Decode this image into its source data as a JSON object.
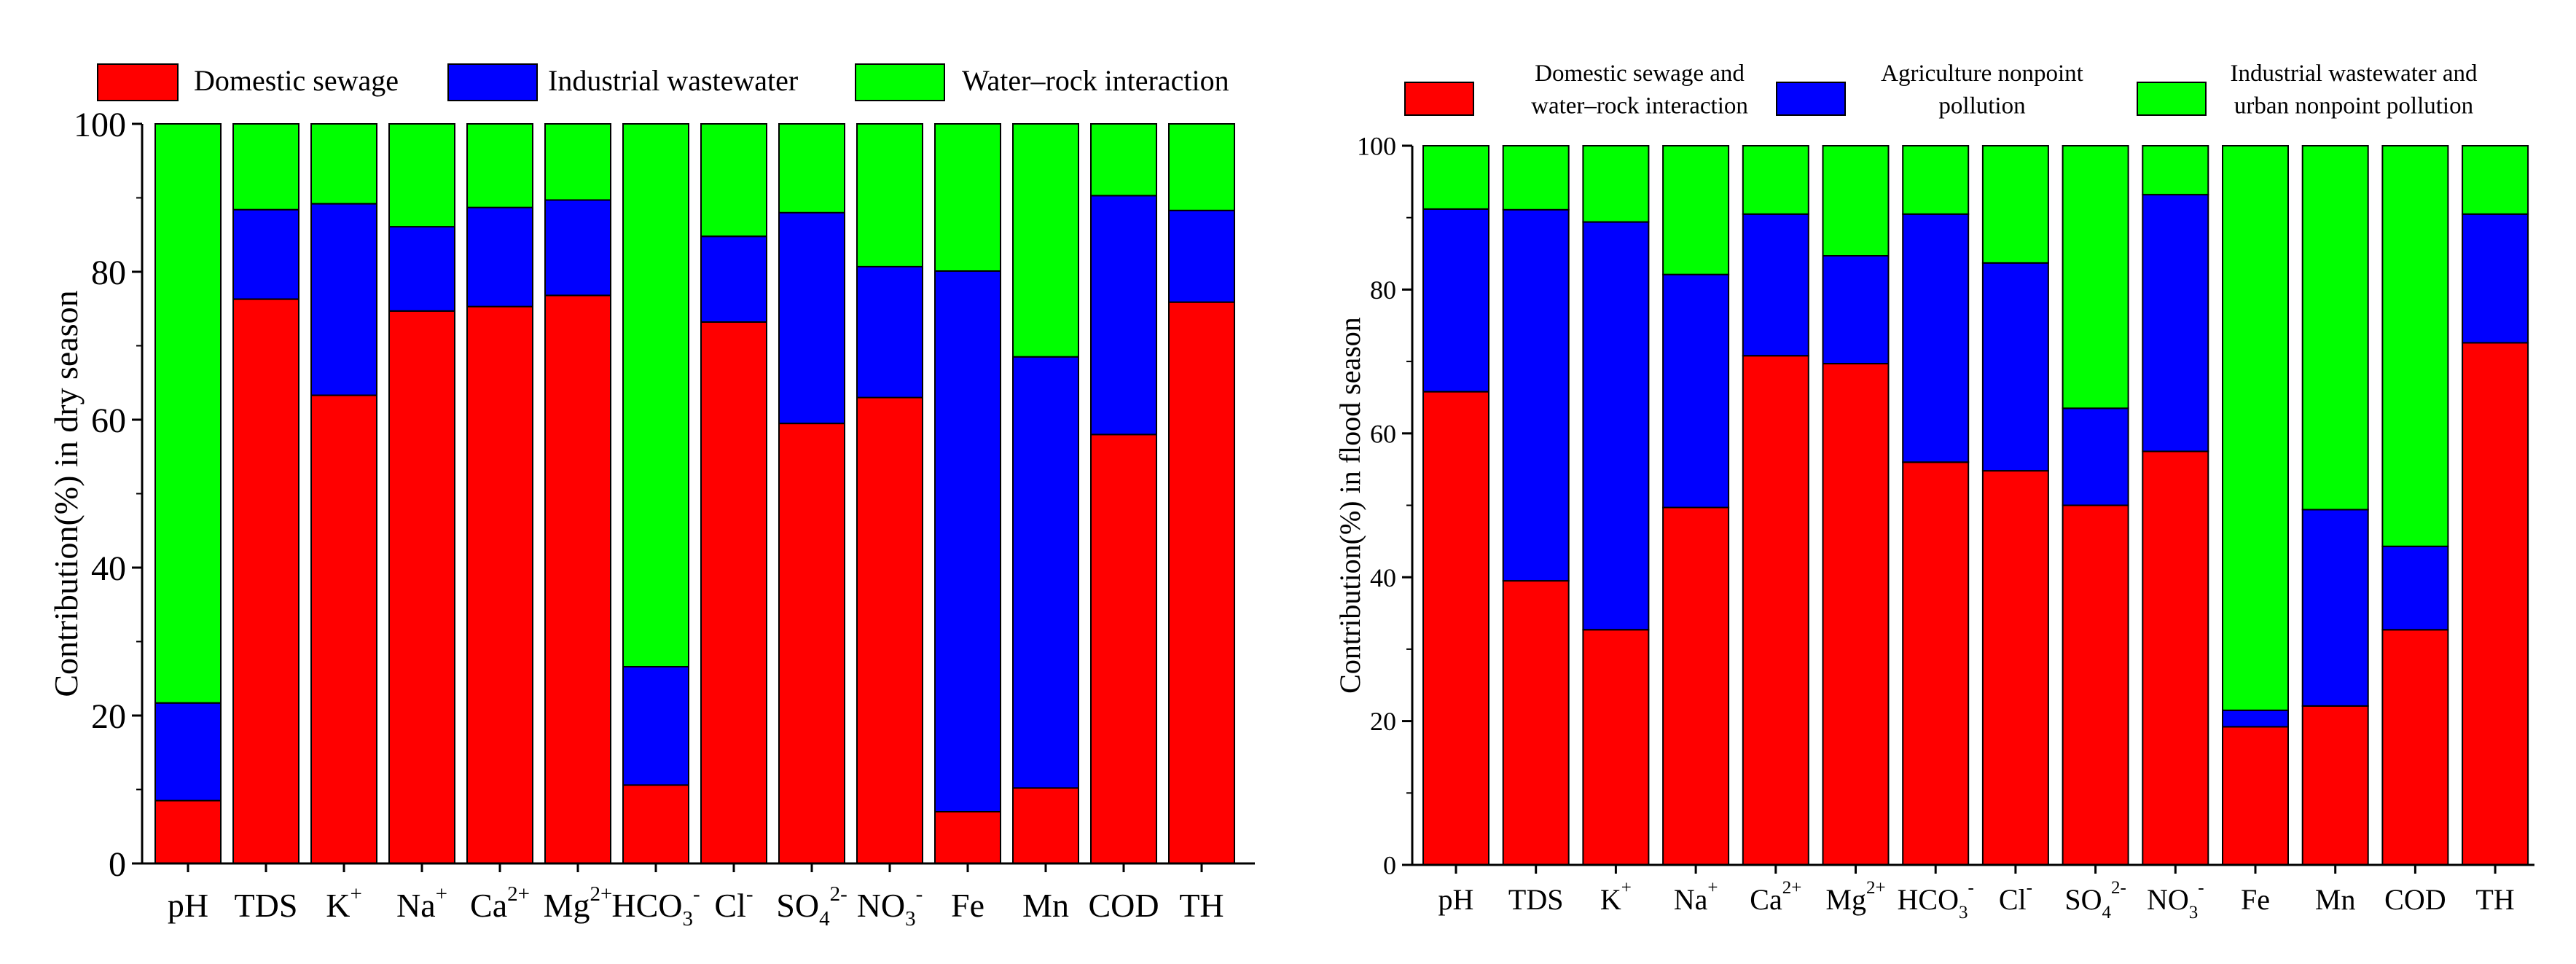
{
  "chart_data": [
    {
      "type": "bar",
      "stacked": true,
      "ylabel": "Contribution(%) in dry season",
      "ylim": [
        0,
        100
      ],
      "yticks": [
        "0",
        "20",
        "40",
        "60",
        "80",
        "100"
      ],
      "legend_position": "top",
      "categories": [
        {
          "base": "pH"
        },
        {
          "base": "TDS"
        },
        {
          "base": "K",
          "sup": "+"
        },
        {
          "base": "Na",
          "sup": "+"
        },
        {
          "base": "Ca",
          "sup": "2+"
        },
        {
          "base": "Mg",
          "sup": "2+"
        },
        {
          "base": "HCO",
          "sub": "3",
          "sup": "-"
        },
        {
          "base": "Cl",
          "sup": "-"
        },
        {
          "base": "SO",
          "sub": "4",
          "sup": "2-"
        },
        {
          "base": "NO",
          "sub": "3",
          "sup": "-"
        },
        {
          "base": "Fe"
        },
        {
          "base": "Mn"
        },
        {
          "base": "COD"
        },
        {
          "base": "TH"
        }
      ],
      "series": [
        {
          "name": "Domestic sewage",
          "color": "#ff0000",
          "values": [
            8.5,
            76.3,
            63.3,
            74.7,
            75.3,
            76.8,
            10.6,
            73.2,
            59.5,
            63.0,
            7.0,
            10.2,
            58.0,
            75.9
          ]
        },
        {
          "name": "Industrial wastewater",
          "color": "#0000ff",
          "values": [
            13.2,
            12.1,
            25.9,
            11.4,
            13.4,
            12.9,
            16.0,
            11.6,
            28.5,
            17.7,
            73.1,
            58.3,
            32.3,
            12.4
          ]
        },
        {
          "name": "Water–rock interaction",
          "color": "#00ff00",
          "values": [
            78.3,
            11.6,
            10.8,
            13.9,
            11.3,
            10.3,
            73.4,
            15.2,
            12.0,
            19.3,
            19.9,
            31.5,
            9.7,
            11.7
          ]
        }
      ]
    },
    {
      "type": "bar",
      "stacked": true,
      "ylabel": "Contribution(%) in flood season",
      "ylim": [
        0,
        100
      ],
      "yticks": [
        "0",
        "20",
        "40",
        "60",
        "80",
        "100"
      ],
      "legend_position": "top",
      "categories": [
        {
          "base": "pH"
        },
        {
          "base": "TDS"
        },
        {
          "base": "K",
          "sup": "+"
        },
        {
          "base": "Na",
          "sup": "+"
        },
        {
          "base": "Ca",
          "sup": "2+"
        },
        {
          "base": "Mg",
          "sup": "2+"
        },
        {
          "base": "HCO",
          "sub": "3",
          "sup": "-"
        },
        {
          "base": "Cl",
          "sup": "-"
        },
        {
          "base": "SO",
          "sub": "4",
          "sup": "2-"
        },
        {
          "base": "NO",
          "sub": "3",
          "sup": "-"
        },
        {
          "base": "Fe"
        },
        {
          "base": "Mn"
        },
        {
          "base": "COD"
        },
        {
          "base": "TH"
        }
      ],
      "series": [
        {
          "name": "Domestic sewage and water–rock interaction",
          "legend_lines": [
            "Domestic sewage and",
            "water–rock interaction"
          ],
          "color": "#ff0000",
          "values": [
            65.8,
            39.5,
            32.7,
            49.7,
            70.8,
            69.7,
            56.0,
            54.8,
            50.0,
            57.5,
            19.2,
            22.1,
            32.7,
            72.6
          ]
        },
        {
          "name": "Agriculture nonpoint pollution",
          "legend_lines": [
            "Agriculture nonpoint",
            "pollution"
          ],
          "color": "#0000ff",
          "values": [
            25.4,
            51.6,
            56.7,
            32.4,
            19.7,
            15.0,
            34.5,
            28.9,
            13.5,
            35.7,
            2.3,
            27.3,
            11.6,
            17.9
          ]
        },
        {
          "name": "Industrial wastewater and urban nonpoint pollution",
          "legend_lines": [
            "Industrial wastewater and",
            "urban nonpoint pollution"
          ],
          "color": "#00ff00",
          "values": [
            8.8,
            8.9,
            10.6,
            17.9,
            9.5,
            15.3,
            9.5,
            16.3,
            36.5,
            6.8,
            78.5,
            50.6,
            55.7,
            9.5
          ]
        }
      ]
    }
  ]
}
